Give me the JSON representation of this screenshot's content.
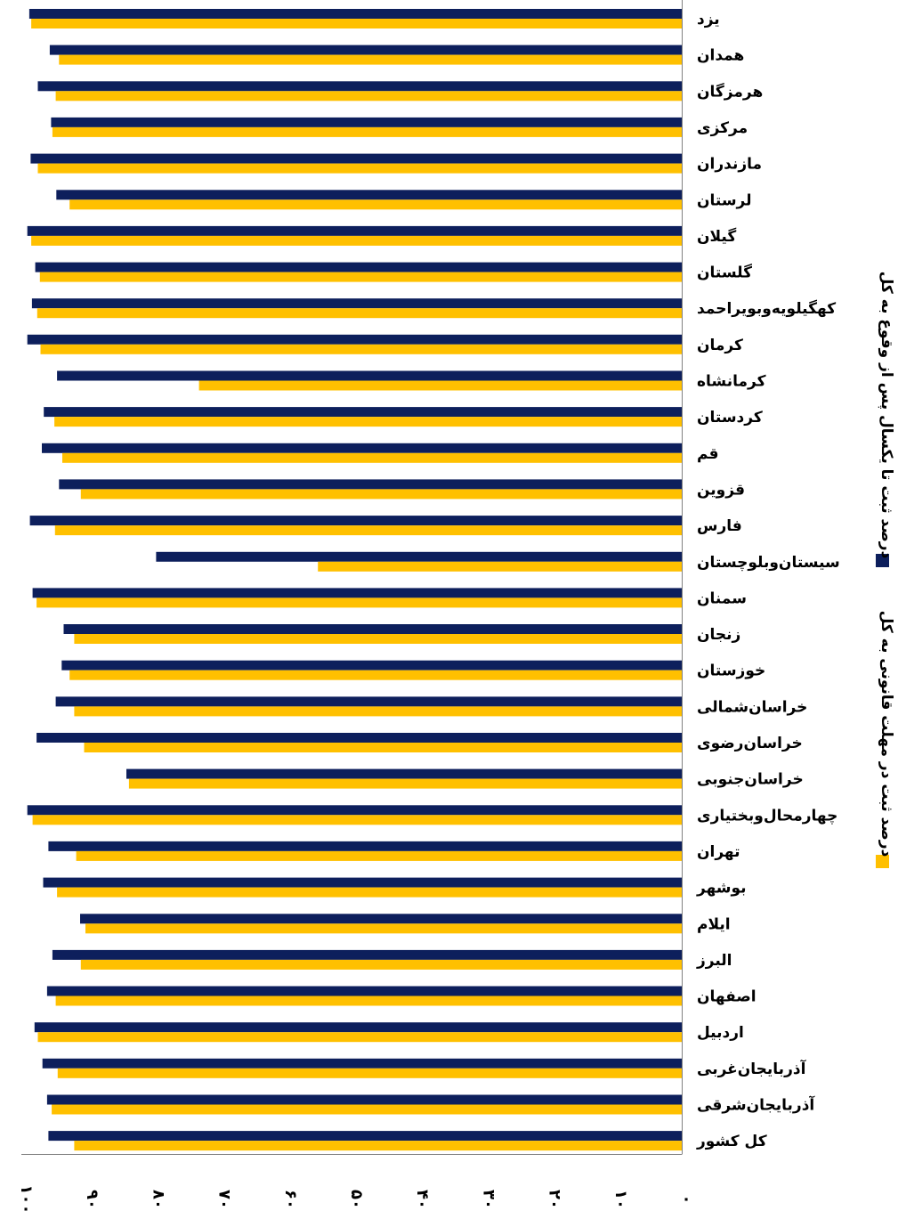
{
  "chart_data": {
    "type": "bar",
    "orientation": "horizontal",
    "axis_direction": "right-to-left",
    "title": "",
    "xlabel": "",
    "ylabel": "",
    "xlim": [
      0,
      100
    ],
    "tick_values": [
      0,
      10,
      20,
      30,
      40,
      50,
      60,
      70,
      80,
      90,
      100
    ],
    "tick_labels": [
      "۰",
      "۱۰",
      "۲۰",
      "۳۰",
      "۴۰",
      "۵۰",
      "۶۰",
      "۷۰",
      "۸۰",
      "۹۰",
      "۱۰۰"
    ],
    "grid": false,
    "legend_position": "right, vertical",
    "categories": [
      "یزد",
      "همدان",
      "هرمزگان",
      "مرکزی",
      "مازندران",
      "لرستان",
      "گیلان",
      "گلستان",
      "کهگیلویه‌وبویراحمد",
      "کرمان",
      "کرمانشاه",
      "کردستان",
      "قم",
      "قزوین",
      "فارس",
      "سیستان‌وبلوچستان",
      "سمنان",
      "زنجان",
      "خوزستان",
      "خراسان‌شمالی",
      "خراسان‌رضوی",
      "خراسان‌جنوبی",
      "چهارمحال‌وبختیاری",
      "تهران",
      "بوشهر",
      "ایلام",
      "البرز",
      "اصفهان",
      "اردبیل",
      "آذربایجان‌غربی",
      "آذربایجان‌شرقی",
      "کل کشور"
    ],
    "series": [
      {
        "name": "درصد ثبت تا یکسال پس از وقوع به کل",
        "color": "#0d1f5c",
        "values": [
          98.8,
          95.7,
          97.5,
          95.5,
          98.6,
          94.7,
          99.1,
          97.9,
          98.4,
          99.1,
          94.6,
          96.6,
          96.9,
          94.3,
          98.7,
          79.6,
          98.3,
          93.6,
          93.9,
          94.8,
          97.7,
          84.1,
          99.1,
          95.9,
          96.7,
          91.1,
          95.3,
          96.1,
          98.0,
          96.8,
          96.1,
          95.9
        ]
      },
      {
        "name": "درصد ثبت در مهلت قانونی به کل",
        "color": "#ffc000",
        "values": [
          98.5,
          94.3,
          94.8,
          95.3,
          97.5,
          92.7,
          98.5,
          97.2,
          97.6,
          97.1,
          73.1,
          95.0,
          93.8,
          91.0,
          94.9,
          55.1,
          97.7,
          92.0,
          92.7,
          92.0,
          90.5,
          83.7,
          98.3,
          91.7,
          94.6,
          90.3,
          91.0,
          94.8,
          97.5,
          94.5,
          95.4,
          92.0
        ]
      }
    ]
  }
}
